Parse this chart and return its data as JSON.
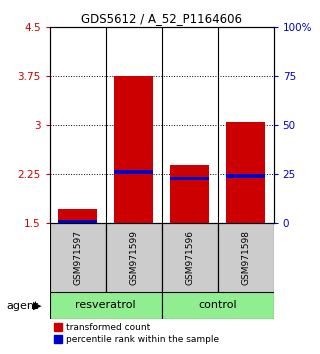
{
  "title": "GDS5612 / A_52_P1164606",
  "samples": [
    "GSM971597",
    "GSM971599",
    "GSM971596",
    "GSM971598"
  ],
  "red_bar_values": [
    1.72,
    3.75,
    2.38,
    3.05
  ],
  "blue_bar_values": [
    1.52,
    2.28,
    2.18,
    2.22
  ],
  "red_bar_bottom": 1.5,
  "ylim_left": [
    1.5,
    4.5
  ],
  "yticks_left": [
    1.5,
    2.25,
    3.0,
    3.75,
    4.5
  ],
  "ytick_labels_left": [
    "1.5",
    "2.25",
    "3",
    "3.75",
    "4.5"
  ],
  "ylim_right": [
    0,
    100
  ],
  "yticks_right": [
    0,
    25,
    50,
    75,
    100
  ],
  "ytick_labels_right": [
    "0",
    "25",
    "50",
    "75",
    "100%"
  ],
  "hlines": [
    2.25,
    3.0,
    3.75
  ],
  "bar_width": 0.7,
  "red_color": "#CC0000",
  "blue_color": "#0000CC",
  "plot_bg_color": "#ffffff",
  "label_box_color": "#cccccc",
  "group_green": "#90EE90",
  "agent_label": "agent",
  "legend_red": "transformed count",
  "legend_blue": "percentile rank within the sample",
  "groups_info": [
    {
      "label": "resveratrol",
      "start": 0,
      "end": 1
    },
    {
      "label": "control",
      "start": 2,
      "end": 3
    }
  ]
}
